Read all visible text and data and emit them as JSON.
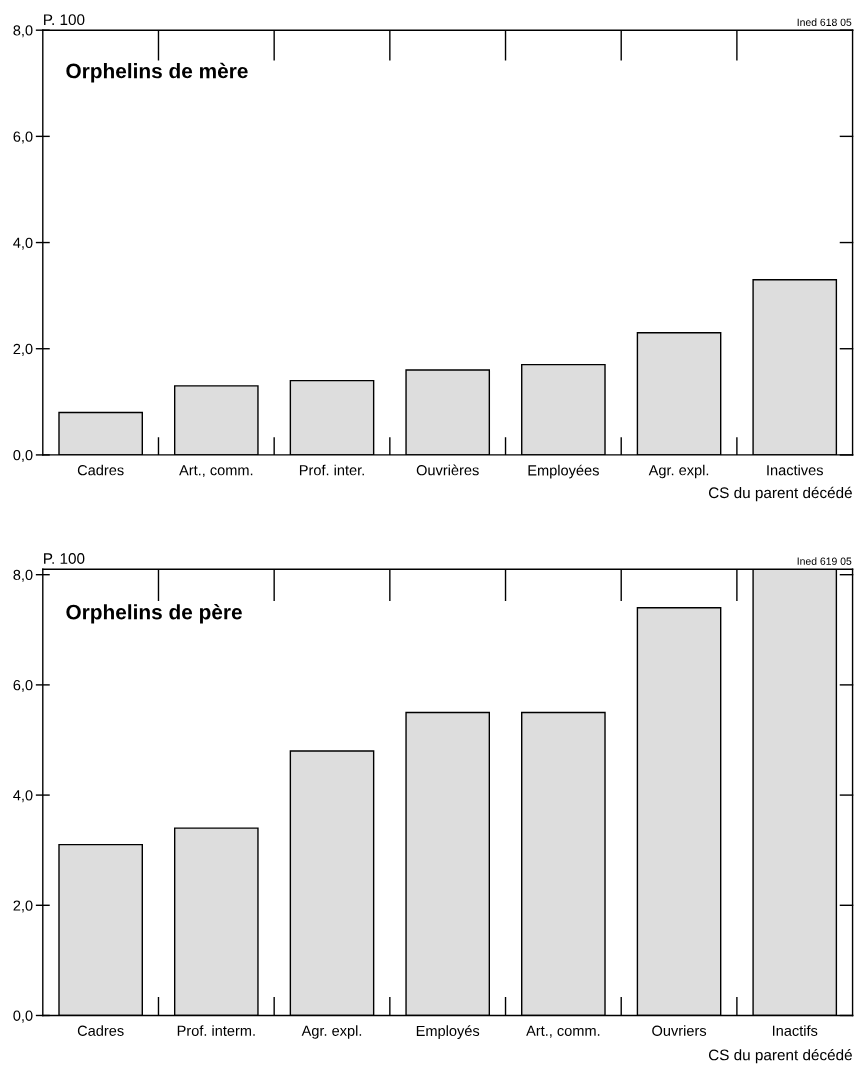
{
  "chart_data": [
    {
      "type": "bar",
      "title": "Orphelins de mère",
      "ylabel": "P. 100",
      "xlabel": "CS du parent décédé",
      "annotations": [
        "Ined 618 05"
      ],
      "categories": [
        "Cadres",
        "Art., comm.",
        "Prof. inter.",
        "Ouvrières",
        "Employées",
        "Agr. expl.",
        "Inactives"
      ],
      "values": [
        0.8,
        1.3,
        1.4,
        1.6,
        1.7,
        2.3,
        3.3
      ],
      "color": "#dddddd",
      "ylim": [
        0,
        8
      ],
      "yticks": [
        {
          "value": 0,
          "label": "0,0"
        },
        {
          "value": 2,
          "label": "2,0"
        },
        {
          "value": 4,
          "label": "4,0"
        },
        {
          "value": 6,
          "label": "6,0"
        },
        {
          "value": 8,
          "label": "8,0"
        }
      ],
      "grid": false,
      "legend": false
    },
    {
      "type": "bar",
      "title": "Orphelins de père",
      "ylabel": "P. 100",
      "xlabel": "CS du parent décédé",
      "annotations": [
        "Ined 619 05"
      ],
      "categories": [
        "Cadres",
        "Prof. interm.",
        "Agr. expl.",
        "Employés",
        "Art., comm.",
        "Ouvriers",
        "Inactifs"
      ],
      "values": [
        3.1,
        3.4,
        4.8,
        5.5,
        5.5,
        7.4,
        8.1
      ],
      "color": "#dddddd",
      "ylim": [
        0,
        8.1
      ],
      "yticks": [
        {
          "value": 0,
          "label": "0,0"
        },
        {
          "value": 2,
          "label": "2,0"
        },
        {
          "value": 4,
          "label": "4,0"
        },
        {
          "value": 6,
          "label": "6,0"
        },
        {
          "value": 8,
          "label": "8,0"
        }
      ],
      "grid": false,
      "legend": false
    }
  ]
}
